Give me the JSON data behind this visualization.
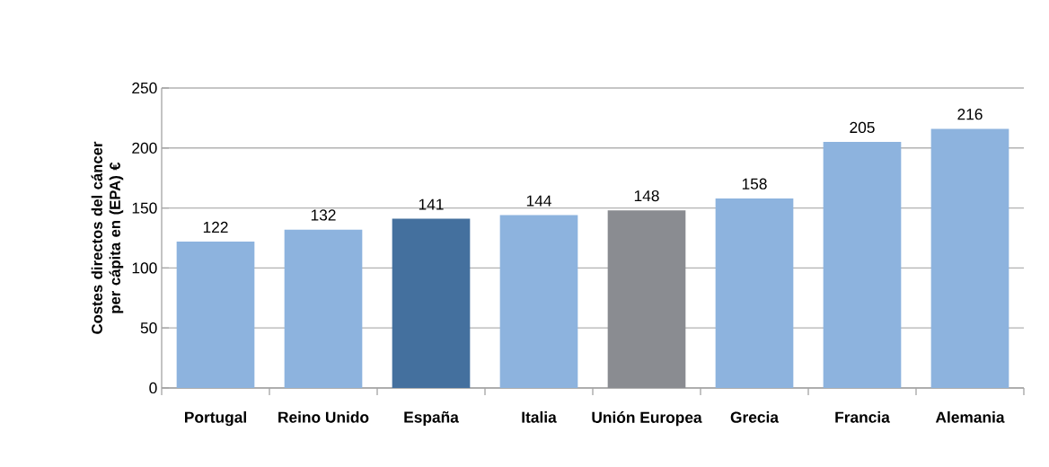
{
  "chart_data": {
    "type": "bar",
    "ylabel": "Costes directos del cáncer per cápita en (EPA) €",
    "categories": [
      "Portugal",
      "Reino Unido",
      "España",
      "Italia",
      "Unión Europea",
      "Grecia",
      "Francia",
      "Alemania"
    ],
    "values": [
      122,
      132,
      141,
      144,
      148,
      158,
      205,
      216
    ],
    "colors": [
      "#8db3de",
      "#8db3de",
      "#44709e",
      "#8db3de",
      "#8a8c91",
      "#8db3de",
      "#8db3de",
      "#8db3de"
    ],
    "ylim": [
      0,
      250
    ],
    "yticks": [
      0,
      50,
      100,
      150,
      200,
      250
    ],
    "grid": "y",
    "data_labels": true
  }
}
